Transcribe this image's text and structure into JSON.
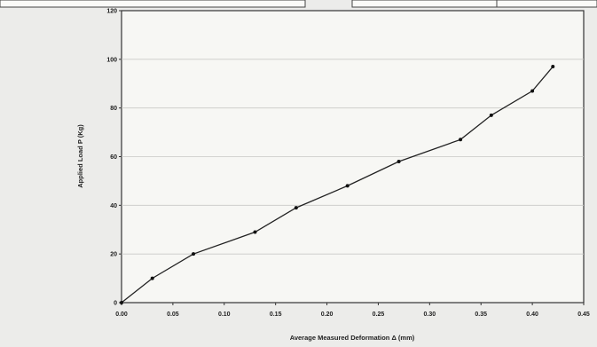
{
  "chart_data": {
    "type": "line",
    "title": "",
    "xlabel": "Average Measured Deformation Δ (mm)",
    "ylabel": "Applied Load P (Kg)",
    "xlim": [
      0,
      0.45
    ],
    "ylim": [
      0,
      120
    ],
    "x_ticks": [
      "0.00",
      "0.05",
      "0.10",
      "0.15",
      "0.20",
      "0.25",
      "0.30",
      "0.35",
      "0.40",
      "0.45"
    ],
    "y_ticks": [
      "0",
      "20",
      "40",
      "60",
      "80",
      "100",
      "120"
    ],
    "grid": "horizontal",
    "legend": "none",
    "series": [
      {
        "x": [
          0.0,
          0.03,
          0.07,
          0.13,
          0.17,
          0.22,
          0.27,
          0.33,
          0.36,
          0.4,
          0.42
        ],
        "y": [
          0,
          10,
          20,
          29,
          39,
          48,
          58,
          67,
          77,
          87,
          97
        ]
      }
    ],
    "colors": {
      "line": "#222222",
      "marker": "#111111",
      "grid": "#c9c9c6"
    }
  }
}
